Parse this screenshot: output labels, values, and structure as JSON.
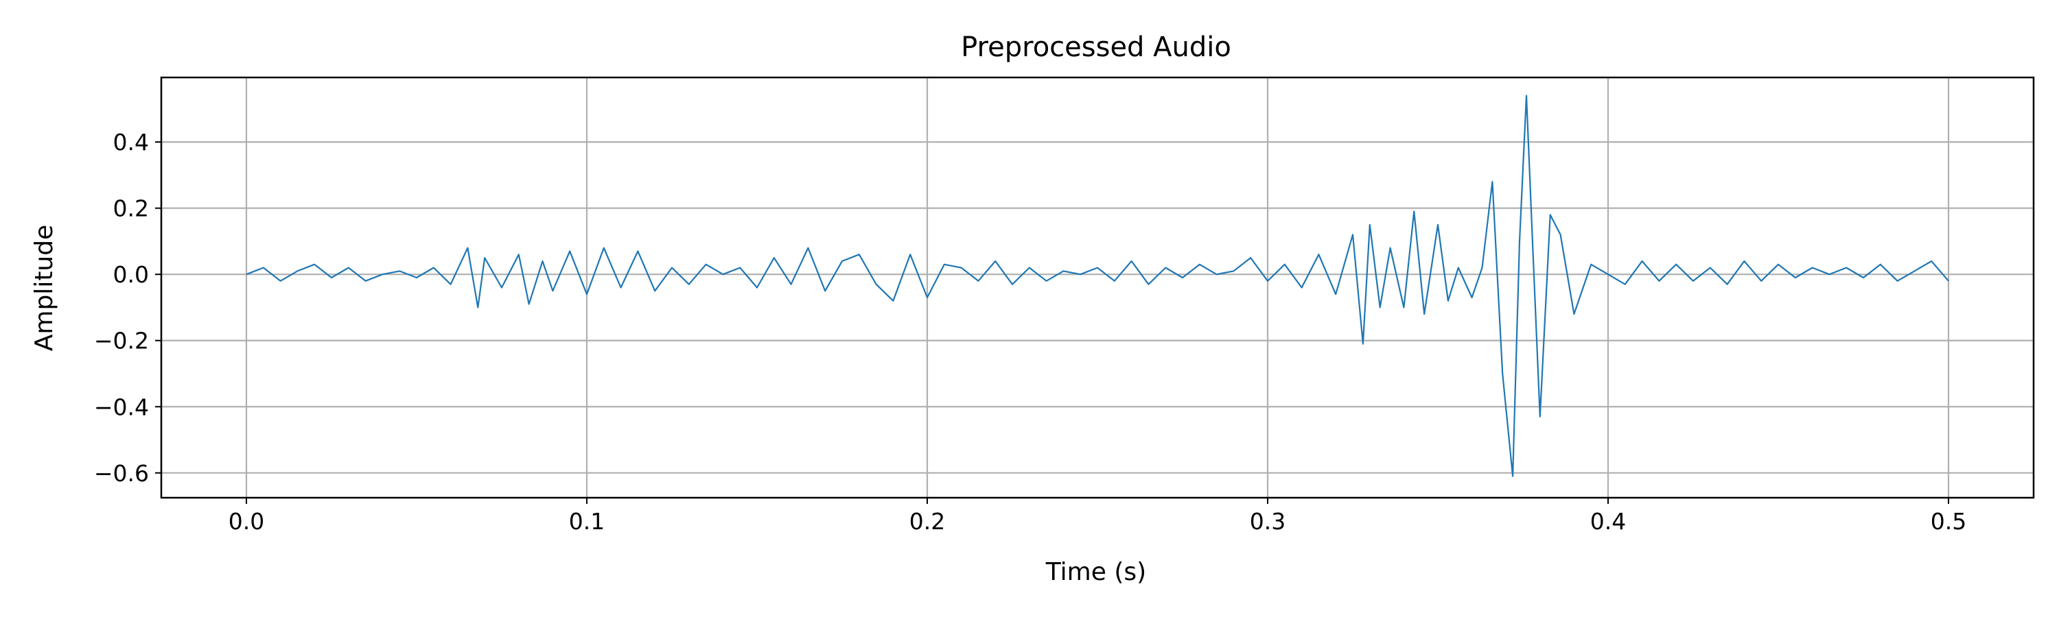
{
  "chart_data": {
    "type": "line",
    "title": "Preprocessed Audio",
    "xlabel": "Time (s)",
    "ylabel": "Amplitude",
    "xlim": [
      -0.025,
      0.525
    ],
    "ylim": [
      -0.675,
      0.595
    ],
    "x_ticks": [
      0.0,
      0.1,
      0.2,
      0.3,
      0.4,
      0.5
    ],
    "x_tick_labels": [
      "0.0",
      "0.1",
      "0.2",
      "0.3",
      "0.4",
      "0.5"
    ],
    "y_ticks": [
      0.4,
      0.2,
      0.0,
      -0.2,
      -0.4,
      -0.6
    ],
    "y_tick_labels": [
      "0.4",
      "0.2",
      "0.0",
      "−0.2",
      "−0.4",
      "−0.6"
    ],
    "grid": true,
    "line_color": "#1f77b4",
    "series": [
      {
        "x": [
          0.0,
          0.005,
          0.01,
          0.015,
          0.02,
          0.025,
          0.03,
          0.035,
          0.04,
          0.045,
          0.05,
          0.055,
          0.06,
          0.065,
          0.068,
          0.07,
          0.075,
          0.08,
          0.083,
          0.087,
          0.09,
          0.095,
          0.1,
          0.105,
          0.11,
          0.115,
          0.12,
          0.125,
          0.13,
          0.135,
          0.14,
          0.145,
          0.15,
          0.155,
          0.16,
          0.165,
          0.17,
          0.175,
          0.18,
          0.185,
          0.19,
          0.195,
          0.2,
          0.205,
          0.21,
          0.215,
          0.22,
          0.225,
          0.23,
          0.235,
          0.24,
          0.245,
          0.25,
          0.255,
          0.26,
          0.265,
          0.27,
          0.275,
          0.28,
          0.285,
          0.29,
          0.295,
          0.3,
          0.305,
          0.31,
          0.315,
          0.32,
          0.325,
          0.328,
          0.33,
          0.333,
          0.336,
          0.34,
          0.343,
          0.346,
          0.35,
          0.353,
          0.356,
          0.36,
          0.363,
          0.366,
          0.369,
          0.372,
          0.374,
          0.376,
          0.378,
          0.38,
          0.383,
          0.386,
          0.39,
          0.395,
          0.4,
          0.405,
          0.41,
          0.415,
          0.42,
          0.425,
          0.43,
          0.435,
          0.44,
          0.445,
          0.45,
          0.455,
          0.46,
          0.465,
          0.47,
          0.475,
          0.48,
          0.485,
          0.49,
          0.495,
          0.5
        ],
        "y": [
          0.0,
          0.02,
          -0.02,
          0.01,
          0.03,
          -0.01,
          0.02,
          -0.02,
          0.0,
          0.01,
          -0.01,
          0.02,
          -0.03,
          0.08,
          -0.1,
          0.05,
          -0.04,
          0.06,
          -0.09,
          0.04,
          -0.05,
          0.07,
          -0.06,
          0.08,
          -0.04,
          0.07,
          -0.05,
          0.02,
          -0.03,
          0.03,
          0.0,
          0.02,
          -0.04,
          0.05,
          -0.03,
          0.08,
          -0.05,
          0.04,
          0.06,
          -0.03,
          -0.08,
          0.06,
          -0.07,
          0.03,
          0.02,
          -0.02,
          0.04,
          -0.03,
          0.02,
          -0.02,
          0.01,
          0.0,
          0.02,
          -0.02,
          0.04,
          -0.03,
          0.02,
          -0.01,
          0.03,
          0.0,
          0.01,
          0.05,
          -0.02,
          0.03,
          -0.04,
          0.06,
          -0.06,
          0.12,
          -0.21,
          0.15,
          -0.1,
          0.08,
          -0.1,
          0.19,
          -0.12,
          0.15,
          -0.08,
          0.02,
          -0.07,
          0.02,
          0.28,
          -0.3,
          -0.61,
          0.1,
          0.54,
          0.05,
          -0.43,
          0.18,
          0.12,
          -0.12,
          0.03,
          0.0,
          -0.03,
          0.04,
          -0.02,
          0.03,
          -0.02,
          0.02,
          -0.03,
          0.04,
          -0.02,
          0.03,
          -0.01,
          0.02,
          0.0,
          0.02,
          -0.01,
          0.03,
          -0.02,
          0.01,
          0.04,
          -0.02
        ]
      }
    ]
  }
}
